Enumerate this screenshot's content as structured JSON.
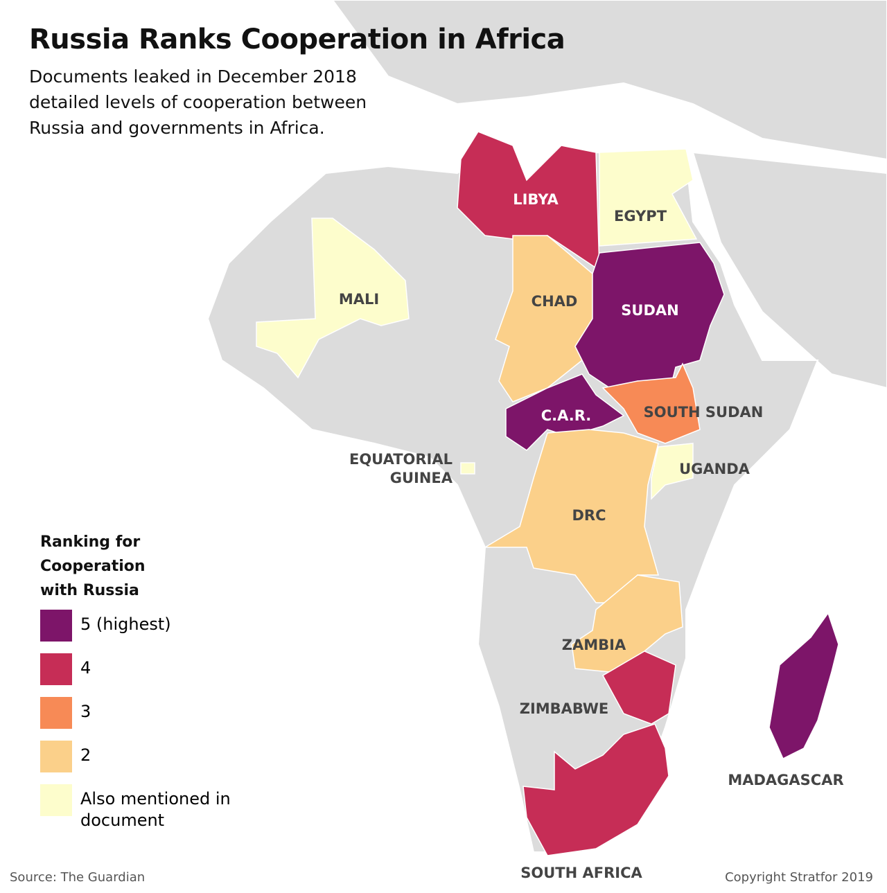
{
  "header": {
    "title": "Russia Ranks Cooperation in Africa",
    "subtitle": "Documents leaked in December 2018 detailed levels of cooperation between Russia and governments in Africa."
  },
  "legend": {
    "title": "Ranking for Cooperation with Russia",
    "items": [
      {
        "label": "5 (highest)",
        "color": "#7d1569"
      },
      {
        "label": "4",
        "color": "#c62d56"
      },
      {
        "label": "3",
        "color": "#f78a56"
      },
      {
        "label": "2",
        "color": "#fbd08a"
      },
      {
        "label": "Also mentioned in document",
        "color": "#fdfdcc"
      }
    ]
  },
  "countries": [
    {
      "label": "LIBYA",
      "color": "#c62d56"
    },
    {
      "label": "EGYPT",
      "color": "#fdfdcc"
    },
    {
      "label": "MALI",
      "color": "#fdfdcc"
    },
    {
      "label": "CHAD",
      "color": "#fbd08a"
    },
    {
      "label": "SUDAN",
      "color": "#7d1569"
    },
    {
      "label": "SOUTH SUDAN",
      "color": "#f78a56"
    },
    {
      "label": "C.A.R.",
      "color": "#7d1569"
    },
    {
      "label": "EQUATORIAL GUINEA",
      "color": "#fdfdcc"
    },
    {
      "label": "UGANDA",
      "color": "#fdfdcc"
    },
    {
      "label": "DRC",
      "color": "#fbd08a"
    },
    {
      "label": "ZAMBIA",
      "color": "#fbd08a"
    },
    {
      "label": "ZIMBABWE",
      "color": "#c62d56"
    },
    {
      "label": "MADAGASCAR",
      "color": "#7d1569"
    },
    {
      "label": "SOUTH AFRICA",
      "color": "#c62d56"
    }
  ],
  "footer": {
    "source": "Source: The Guardian",
    "copyright": "Copyright Stratfor 2019"
  }
}
